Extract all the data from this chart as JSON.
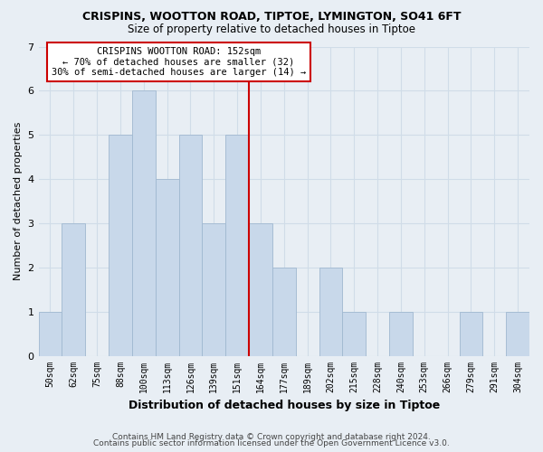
{
  "title": "CRISPINS, WOOTTON ROAD, TIPTOE, LYMINGTON, SO41 6FT",
  "subtitle": "Size of property relative to detached houses in Tiptoe",
  "xlabel": "Distribution of detached houses by size in Tiptoe",
  "ylabel": "Number of detached properties",
  "bin_labels": [
    "50sqm",
    "62sqm",
    "75sqm",
    "88sqm",
    "100sqm",
    "113sqm",
    "126sqm",
    "139sqm",
    "151sqm",
    "164sqm",
    "177sqm",
    "189sqm",
    "202sqm",
    "215sqm",
    "228sqm",
    "240sqm",
    "253sqm",
    "266sqm",
    "279sqm",
    "291sqm",
    "304sqm"
  ],
  "bar_heights": [
    1,
    3,
    0,
    5,
    6,
    4,
    5,
    3,
    5,
    3,
    2,
    0,
    2,
    1,
    0,
    1,
    0,
    0,
    1,
    0,
    1
  ],
  "bar_color": "#c8d8ea",
  "bar_edge_color": "#a0b8d0",
  "highlight_line_color": "#cc0000",
  "annotation_title": "CRISPINS WOOTTON ROAD: 152sqm",
  "annotation_line1": "← 70% of detached houses are smaller (32)",
  "annotation_line2": "30% of semi-detached houses are larger (14) →",
  "annotation_box_color": "#ffffff",
  "annotation_box_edge": "#cc0000",
  "ylim": [
    0,
    7
  ],
  "yticks": [
    0,
    1,
    2,
    3,
    4,
    5,
    6,
    7
  ],
  "footer1": "Contains HM Land Registry data © Crown copyright and database right 2024.",
  "footer2": "Contains public sector information licensed under the Open Government Licence v3.0.",
  "background_color": "#e8eef4",
  "grid_color": "#d0dce8"
}
